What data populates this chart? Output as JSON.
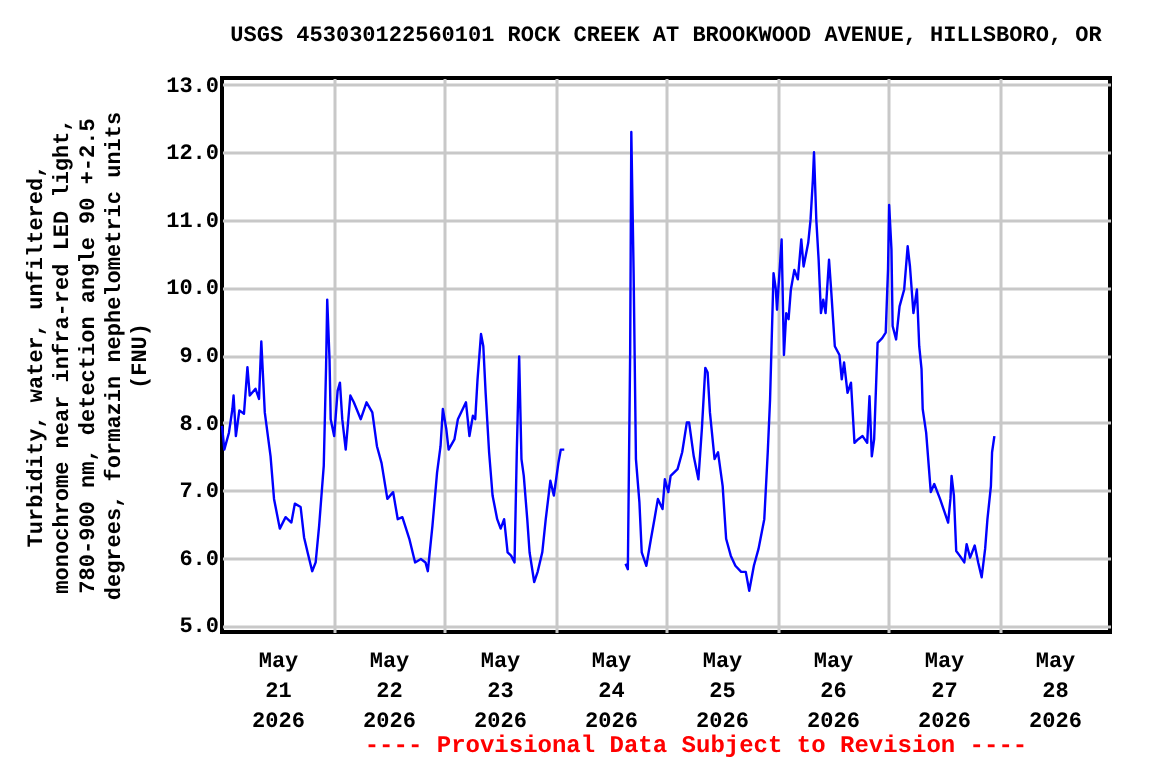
{
  "chart_data": {
    "type": "line",
    "title": "USGS 453030122560101 ROCK CREEK AT BROOKWOOD AVENUE, HILLSBORO, OR",
    "ylabel": "Turbidity, water, unfiltered,\nmonochrome near infra-red LED light,\n780-900 nm, detection angle 90 +-2.5\ndegrees, formazin nephelometric units\n(FNU)",
    "annotations": [
      "---- Provisional Data Subject to Revision ----"
    ],
    "color": "#0000ff",
    "grid": true,
    "ylim": [
      4.9,
      13.1
    ],
    "yticks": [
      {
        "value": 5,
        "label": "5.0"
      },
      {
        "value": 6,
        "label": "6.0"
      },
      {
        "value": 7,
        "label": "7.0"
      },
      {
        "value": 8,
        "label": "8.0"
      },
      {
        "value": 9,
        "label": "9.0"
      },
      {
        "value": 10,
        "label": "10.0"
      },
      {
        "value": 11,
        "label": "11.0"
      },
      {
        "value": 12,
        "label": "12.0"
      },
      {
        "value": 13,
        "label": "13.0"
      }
    ],
    "xlim": [
      "2026-05-21T00:00",
      "2026-05-29T00:00"
    ],
    "xticks": [
      {
        "value": "2026-05-21T12:00",
        "label": "May\n21\n2026"
      },
      {
        "value": "2026-05-22T12:00",
        "label": "May\n22\n2026"
      },
      {
        "value": "2026-05-23T12:00",
        "label": "May\n23\n2026"
      },
      {
        "value": "2026-05-24T12:00",
        "label": "May\n24\n2026"
      },
      {
        "value": "2026-05-25T12:00",
        "label": "May\n25\n2026"
      },
      {
        "value": "2026-05-26T12:00",
        "label": "May\n26\n2026"
      },
      {
        "value": "2026-05-27T12:00",
        "label": "May\n27\n2026"
      },
      {
        "value": "2026-05-28T12:00",
        "label": "May\n28\n2026"
      },
      {
        "value": "2026-05-22T00:00",
        "label": null
      },
      {
        "value": "2026-05-23T00:00",
        "label": null
      },
      {
        "value": "2026-05-24T00:00",
        "label": null
      },
      {
        "value": "2026-05-25T00:00",
        "label": null
      },
      {
        "value": "2026-05-26T00:00",
        "label": null
      },
      {
        "value": "2026-05-27T00:00",
        "label": null
      },
      {
        "value": "2026-05-28T00:00",
        "label": null
      }
    ],
    "x": [
      "2026-05-21T00:00",
      "2026-05-21T00:30",
      "2026-05-21T01:30",
      "2026-05-21T02:15",
      "2026-05-21T02:30",
      "2026-05-21T03:00",
      "2026-05-21T03:45",
      "2026-05-21T04:45",
      "2026-05-21T05:30",
      "2026-05-21T06:00",
      "2026-05-21T07:15",
      "2026-05-21T08:00",
      "2026-05-21T08:30",
      "2026-05-21T09:15",
      "2026-05-21T10:30",
      "2026-05-21T11:15",
      "2026-05-21T12:30",
      "2026-05-21T13:45",
      "2026-05-21T15:00",
      "2026-05-21T15:45",
      "2026-05-21T17:00",
      "2026-05-21T17:45",
      "2026-05-21T18:30",
      "2026-05-21T19:30",
      "2026-05-21T20:15",
      "2026-05-21T21:00",
      "2026-05-21T22:00",
      "2026-05-21T22:30",
      "2026-05-21T22:45",
      "2026-05-21T23:15",
      "2026-05-21T23:30",
      "2026-05-22T00:15",
      "2026-05-22T01:00",
      "2026-05-22T01:30",
      "2026-05-22T02:00",
      "2026-05-22T02:45",
      "2026-05-22T03:45",
      "2026-05-22T04:30",
      "2026-05-22T06:00",
      "2026-05-22T07:15",
      "2026-05-22T08:30",
      "2026-05-22T09:30",
      "2026-05-22T10:30",
      "2026-05-22T11:45",
      "2026-05-22T13:00",
      "2026-05-22T14:00",
      "2026-05-22T15:00",
      "2026-05-22T16:30",
      "2026-05-22T17:45",
      "2026-05-22T19:00",
      "2026-05-22T20:00",
      "2026-05-22T20:30",
      "2026-05-22T21:30",
      "2026-05-22T22:30",
      "2026-05-22T23:15",
      "2026-05-22T23:45",
      "2026-05-23T00:30",
      "2026-05-23T01:00",
      "2026-05-23T02:15",
      "2026-05-23T03:00",
      "2026-05-23T04:45",
      "2026-05-23T05:30",
      "2026-05-23T06:15",
      "2026-05-23T06:45",
      "2026-05-23T07:15",
      "2026-05-23T08:00",
      "2026-05-23T08:30",
      "2026-05-23T09:00",
      "2026-05-23T09:45",
      "2026-05-23T10:30",
      "2026-05-23T11:30",
      "2026-05-23T12:15",
      "2026-05-23T13:00",
      "2026-05-23T13:45",
      "2026-05-23T14:30",
      "2026-05-23T15:15",
      "2026-05-23T15:45",
      "2026-05-23T16:15",
      "2026-05-23T16:45",
      "2026-05-23T17:15",
      "2026-05-23T18:00",
      "2026-05-23T18:30",
      "2026-05-23T19:30",
      "2026-05-23T20:15",
      "2026-05-23T21:15",
      "2026-05-23T22:00",
      "2026-05-23T23:00",
      "2026-05-23T23:45",
      "2026-05-24T00:45",
      "2026-05-24T01:15",
      "2026-05-24T02:00",
      "2026-05-24T08:00",
      "2026-05-24T15:15",
      "2026-05-24T15:45",
      "2026-05-24T16:15",
      "2026-05-24T16:30",
      "2026-05-24T17:00",
      "2026-05-24T17:30",
      "2026-05-24T18:15",
      "2026-05-24T18:45",
      "2026-05-24T19:45",
      "2026-05-24T20:45",
      "2026-05-24T21:30",
      "2026-05-24T22:15",
      "2026-05-24T23:15",
      "2026-05-24T23:45",
      "2026-05-25T00:30",
      "2026-05-25T01:00",
      "2026-05-25T02:30",
      "2026-05-25T03:30",
      "2026-05-25T04:30",
      "2026-05-25T05:00",
      "2026-05-25T06:00",
      "2026-05-25T07:00",
      "2026-05-25T07:45",
      "2026-05-25T08:30",
      "2026-05-25T09:00",
      "2026-05-25T09:30",
      "2026-05-25T10:30",
      "2026-05-25T11:15",
      "2026-05-25T12:15",
      "2026-05-25T13:00",
      "2026-05-25T14:00",
      "2026-05-25T15:00",
      "2026-05-25T16:15",
      "2026-05-25T17:15",
      "2026-05-25T18:00",
      "2026-05-25T19:00",
      "2026-05-25T20:00",
      "2026-05-25T21:15",
      "2026-05-25T22:00",
      "2026-05-25T22:30",
      "2026-05-25T23:15",
      "2026-05-25T23:45",
      "2026-05-26T00:00",
      "2026-05-26T01:00",
      "2026-05-26T01:30",
      "2026-05-26T02:00",
      "2026-05-26T02:30",
      "2026-05-26T03:00",
      "2026-05-26T03:45",
      "2026-05-26T04:30",
      "2026-05-26T05:15",
      "2026-05-26T05:45",
      "2026-05-26T06:45",
      "2026-05-26T07:15",
      "2026-05-26T07:45",
      "2026-05-26T08:00",
      "2026-05-26T08:30",
      "2026-05-26T09:00",
      "2026-05-26T09:30",
      "2026-05-26T10:00",
      "2026-05-26T10:30",
      "2026-05-26T11:15",
      "2026-05-26T11:45",
      "2026-05-26T12:30",
      "2026-05-26T13:30",
      "2026-05-26T14:00",
      "2026-05-26T14:30",
      "2026-05-26T15:15",
      "2026-05-26T16:00",
      "2026-05-26T16:45",
      "2026-05-26T17:30",
      "2026-05-26T18:30",
      "2026-05-26T19:30",
      "2026-05-26T20:00",
      "2026-05-26T20:30",
      "2026-05-26T21:00",
      "2026-05-26T21:45",
      "2026-05-26T22:45",
      "2026-05-26T23:30",
      "2026-05-27T00:00",
      "2026-05-27T00:15",
      "2026-05-27T00:45",
      "2026-05-27T01:00",
      "2026-05-27T01:45",
      "2026-05-27T02:30",
      "2026-05-27T03:30",
      "2026-05-27T04:15",
      "2026-05-27T04:45",
      "2026-05-27T05:30",
      "2026-05-27T06:15",
      "2026-05-27T06:45",
      "2026-05-27T07:15",
      "2026-05-27T07:30",
      "2026-05-27T08:15",
      "2026-05-27T09:15",
      "2026-05-27T10:00",
      "2026-05-27T11:15",
      "2026-05-27T12:15",
      "2026-05-27T13:00",
      "2026-05-27T13:30",
      "2026-05-27T13:45",
      "2026-05-27T14:15",
      "2026-05-27T14:45",
      "2026-05-27T15:30",
      "2026-05-27T16:30",
      "2026-05-27T17:00",
      "2026-05-27T17:45",
      "2026-05-27T18:45",
      "2026-05-27T19:30",
      "2026-05-27T20:15",
      "2026-05-27T21:00",
      "2026-05-27T21:30",
      "2026-05-27T22:15",
      "2026-05-27T22:30",
      "2026-05-27T23:00"
    ],
    "values": [
      7.95,
      7.6,
      7.85,
      8.2,
      8.4,
      7.8,
      8.18,
      8.13,
      8.82,
      8.4,
      8.5,
      8.35,
      9.2,
      8.15,
      7.5,
      6.87,
      6.43,
      6.6,
      6.52,
      6.8,
      6.75,
      6.3,
      6.08,
      5.8,
      5.93,
      6.47,
      7.36,
      8.82,
      9.82,
      8.93,
      8.05,
      7.8,
      8.47,
      8.59,
      8.05,
      7.6,
      8.4,
      8.3,
      8.05,
      8.3,
      8.15,
      7.65,
      7.4,
      6.87,
      6.97,
      6.57,
      6.6,
      6.28,
      5.93,
      5.98,
      5.93,
      5.8,
      6.47,
      7.26,
      7.65,
      8.2,
      7.9,
      7.6,
      7.75,
      8.05,
      8.3,
      7.8,
      8.1,
      8.05,
      8.64,
      9.31,
      9.13,
      8.44,
      7.56,
      6.92,
      6.57,
      6.43,
      6.57,
      6.08,
      6.03,
      5.93,
      7.6,
      8.98,
      7.46,
      7.21,
      6.57,
      6.08,
      5.64,
      5.79,
      6.08,
      6.57,
      7.14,
      6.92,
      7.41,
      7.6,
      7.6,
      null,
      5.91,
      5.83,
      9.03,
      12.3,
      10.21,
      7.46,
      6.82,
      6.08,
      5.88,
      6.28,
      6.57,
      6.87,
      6.72,
      7.16,
      6.97,
      7.21,
      7.31,
      7.56,
      8.0,
      8.0,
      7.5,
      7.16,
      7.9,
      8.81,
      8.74,
      8.15,
      7.46,
      7.56,
      7.06,
      6.28,
      6.03,
      5.88,
      5.79,
      5.79,
      5.51,
      5.88,
      6.13,
      6.57,
      7.56,
      8.34,
      10.21,
      9.97,
      9.67,
      10.71,
      9.0,
      9.62,
      9.53,
      9.97,
      10.26,
      10.12,
      10.71,
      10.31,
      10.66,
      11.0,
      11.59,
      12.0,
      11.0,
      10.41,
      9.62,
      9.82,
      9.62,
      10.41,
      9.92,
      9.13,
      9.0,
      8.64,
      8.89,
      8.44,
      8.59,
      7.7,
      7.75,
      7.8,
      7.7,
      8.39,
      7.5,
      7.75,
      9.18,
      9.25,
      9.33,
      10.26,
      11.22,
      10.56,
      9.43,
      9.23,
      9.72,
      9.97,
      10.61,
      10.31,
      9.62,
      9.97,
      9.13,
      8.79,
      8.2,
      7.85,
      6.97,
      7.09,
      6.87,
      6.67,
      6.52,
      6.87,
      7.21,
      6.92,
      6.1,
      6.03,
      5.93,
      6.2,
      6.0,
      6.18,
      5.93,
      5.71,
      6.13,
      6.57,
      7.06,
      7.56,
      7.8
    ]
  }
}
